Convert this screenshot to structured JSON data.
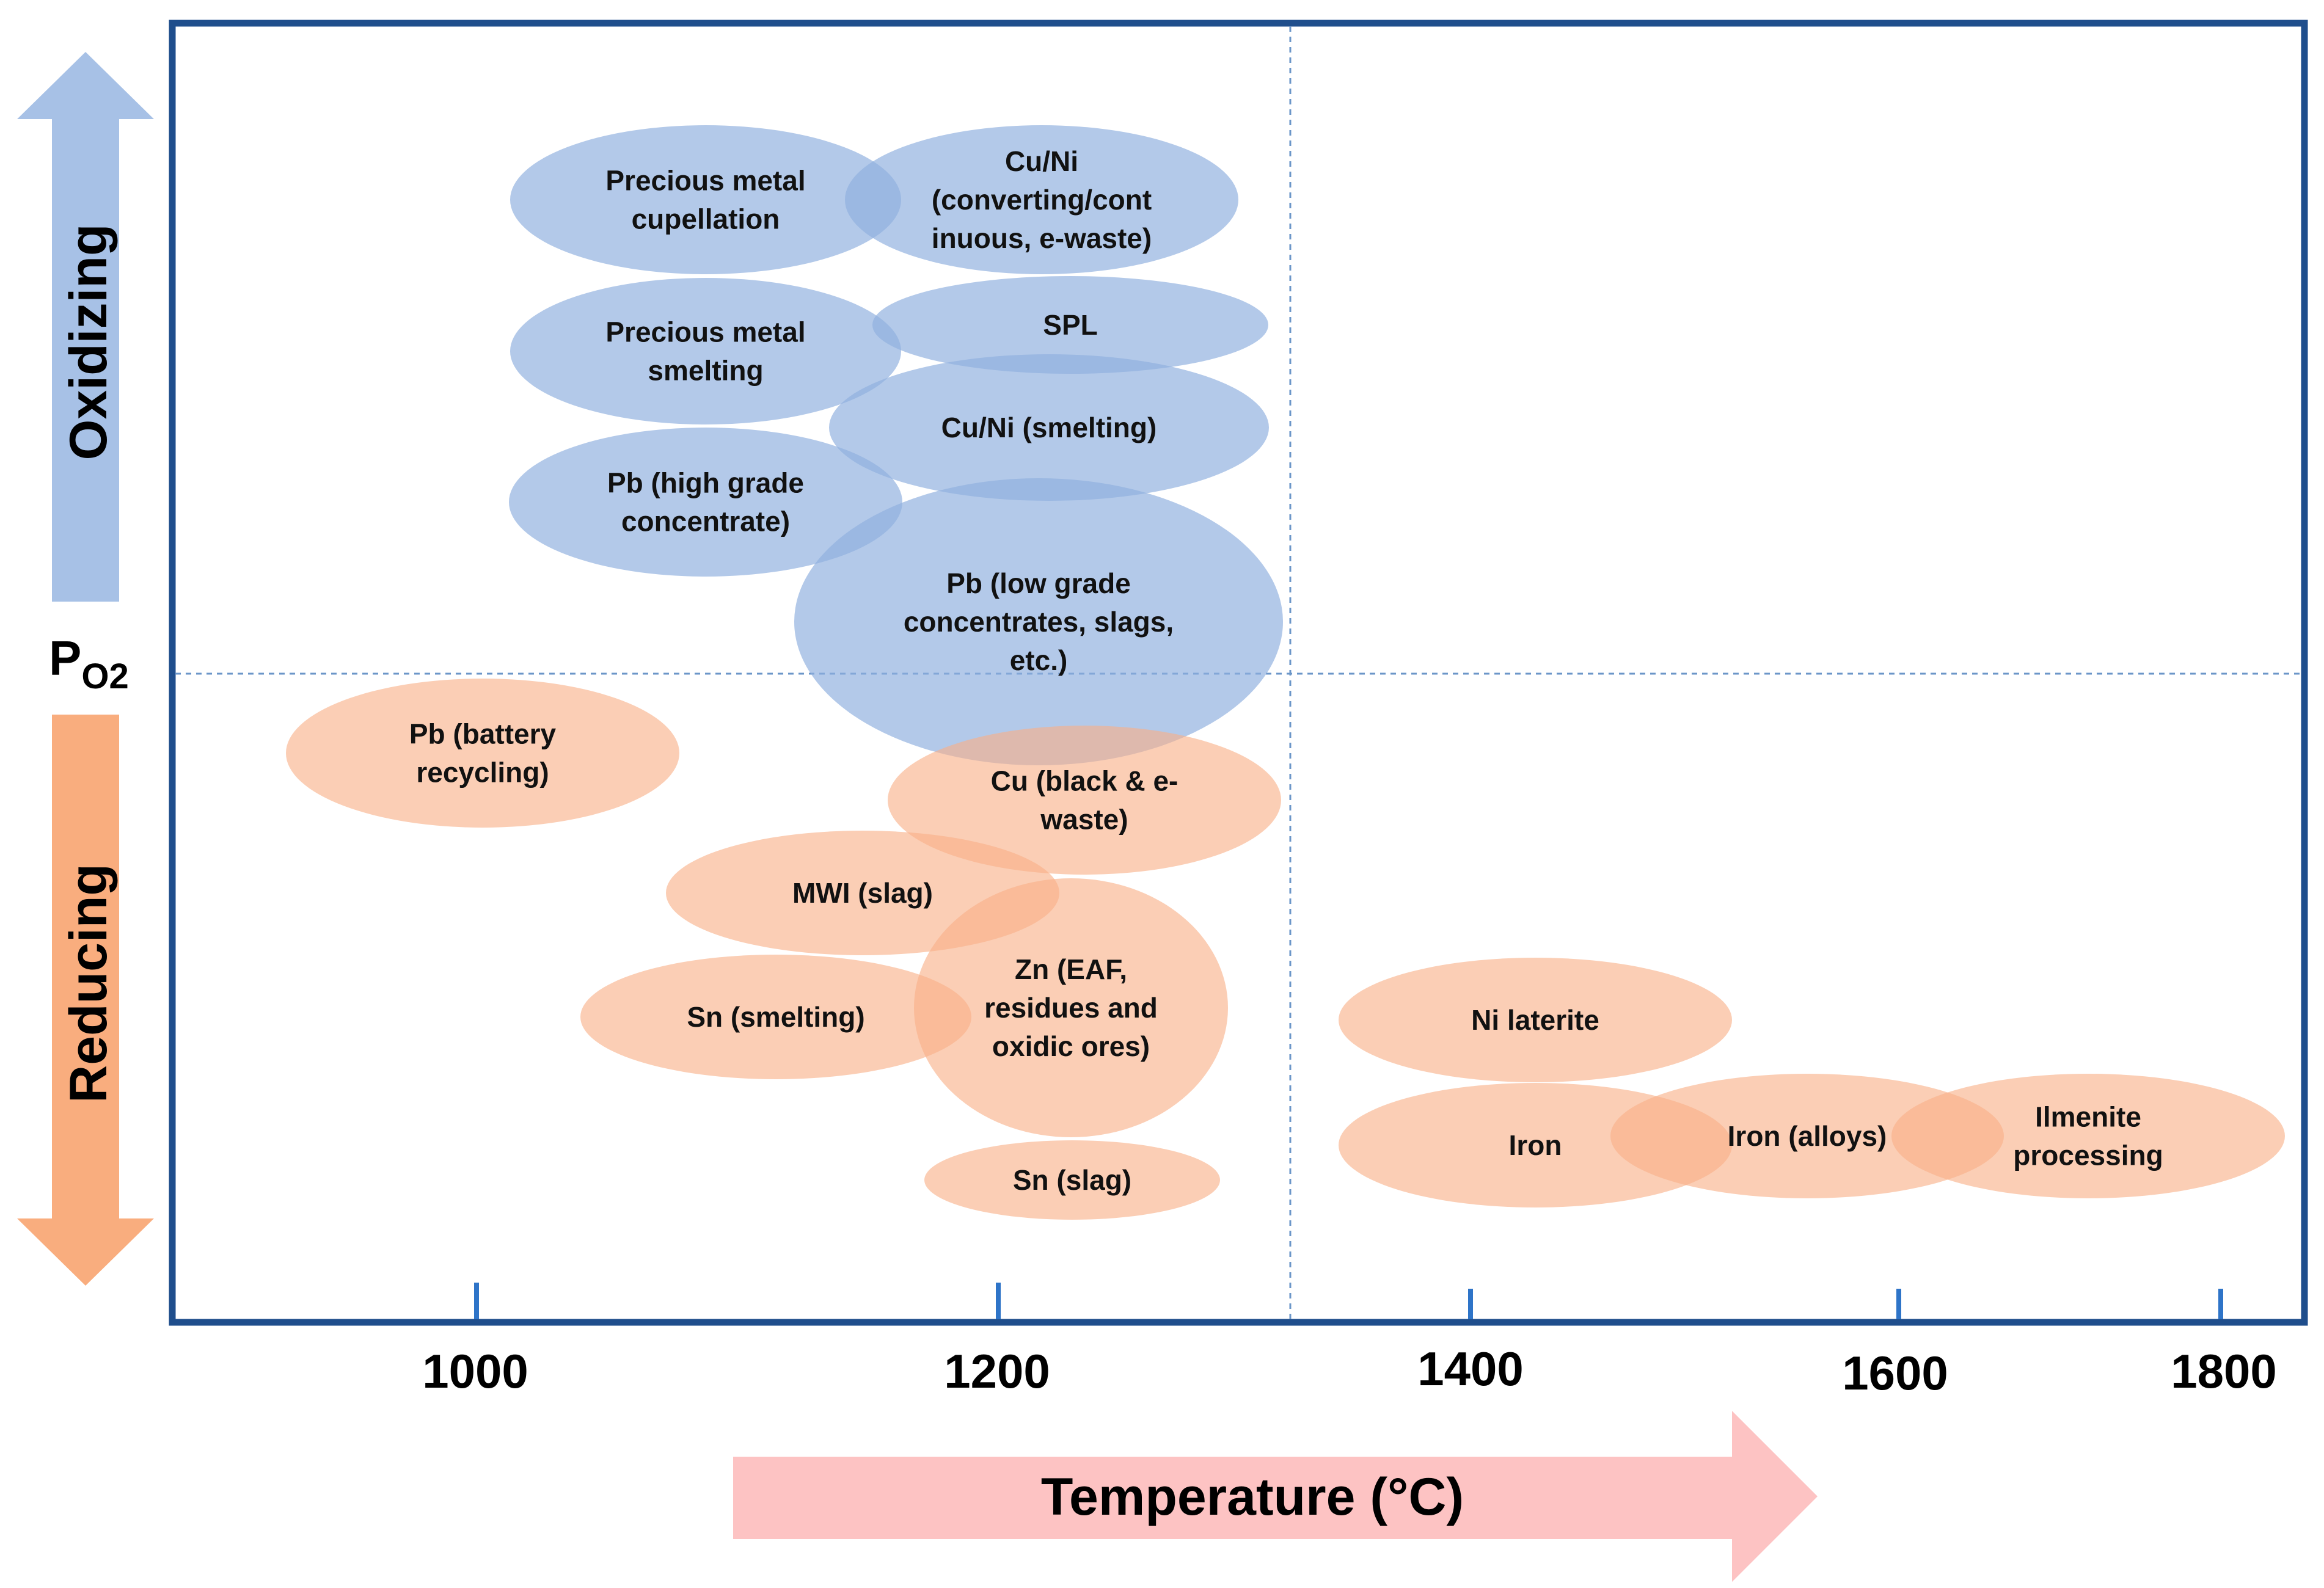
{
  "diagram": {
    "colors": {
      "frame": "#1F4E8C",
      "oxidizing_fill": "#8FB0DF",
      "reducing_fill": "#F8B088",
      "ox_arrow": "#A7C1E6",
      "red_arrow": "#F9AD7E",
      "temp_arrow": "#FDC3C3",
      "tick": "#2E74C8",
      "guide": "#6B96C8"
    },
    "axis": {
      "tick_labels": [
        "1000",
        "1200",
        "1400",
        "1600",
        "1800"
      ],
      "temperature_label": "Temperature (°C)",
      "po2_main": "P",
      "po2_sub": "O2",
      "oxidizing_label": "Oxidizing",
      "reducing_label": "Reducing"
    },
    "regions": [
      {
        "name": "precious-metal-cupellation",
        "type": "oxidizing",
        "lines": [
          "Precious metal",
          "cupellation"
        ]
      },
      {
        "name": "cu-ni-converting",
        "type": "oxidizing",
        "lines": [
          "Cu/Ni",
          "(converting/cont",
          "inuous, e-waste)"
        ]
      },
      {
        "name": "precious-metal-smelting",
        "type": "oxidizing",
        "lines": [
          "Precious metal",
          "smelting"
        ]
      },
      {
        "name": "spl",
        "type": "oxidizing",
        "lines": [
          "SPL"
        ]
      },
      {
        "name": "cu-ni-smelting",
        "type": "oxidizing",
        "lines": [
          "Cu/Ni (smelting)"
        ]
      },
      {
        "name": "pb-high-grade",
        "type": "oxidizing",
        "lines": [
          "Pb (high grade",
          "concentrate)"
        ]
      },
      {
        "name": "pb-low-grade",
        "type": "oxidizing",
        "lines": [
          "Pb (low grade",
          "concentrates, slags,",
          "etc.)"
        ]
      },
      {
        "name": "pb-battery",
        "type": "reducing",
        "lines": [
          "Pb (battery",
          "recycling)"
        ]
      },
      {
        "name": "cu-black",
        "type": "reducing",
        "lines": [
          "Cu (black & e-",
          "waste)"
        ]
      },
      {
        "name": "mwi-slag",
        "type": "reducing",
        "lines": [
          "MWI (slag)"
        ]
      },
      {
        "name": "sn-smelting",
        "type": "reducing",
        "lines": [
          "Sn (smelting)"
        ]
      },
      {
        "name": "zn-eaf",
        "type": "reducing",
        "lines": [
          "Zn (EAF,",
          "residues and",
          "oxidic ores)"
        ]
      },
      {
        "name": "sn-slag",
        "type": "reducing",
        "lines": [
          "Sn (slag)"
        ]
      },
      {
        "name": "ni-laterite",
        "type": "reducing",
        "lines": [
          "Ni laterite"
        ]
      },
      {
        "name": "iron",
        "type": "reducing",
        "lines": [
          "Iron"
        ]
      },
      {
        "name": "iron-alloys",
        "type": "reducing",
        "lines": [
          "Iron (alloys)"
        ]
      },
      {
        "name": "ilmenite",
        "type": "reducing",
        "lines": [
          "Ilmenite",
          "processing"
        ]
      }
    ]
  }
}
